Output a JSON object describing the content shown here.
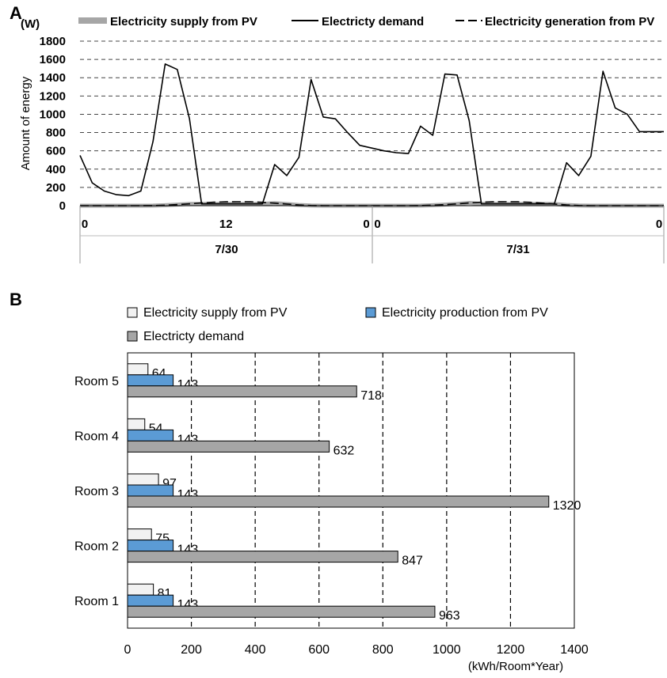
{
  "chart_data": [
    {
      "panel": "A",
      "type": "line",
      "unit": "(W)",
      "ylabel": "Amount of energy",
      "ylim": [
        0,
        1800
      ],
      "yticks": [
        0,
        200,
        400,
        600,
        800,
        1000,
        1200,
        1400,
        1600,
        1800
      ],
      "grid": "dashed horizontal",
      "legend_position": "top",
      "x_ticks": [
        {
          "hour": 0,
          "label": "0"
        },
        {
          "hour": 12,
          "label": "12"
        },
        {
          "hour": 24,
          "label": "0"
        },
        {
          "hour": 24,
          "label": "0"
        },
        {
          "hour": 48,
          "label": "0"
        }
      ],
      "date_labels": [
        {
          "hour": 12,
          "label": "7/30"
        },
        {
          "hour": 36,
          "label": "7/31"
        }
      ],
      "legend": [
        {
          "label": "Electricity supply from PV",
          "style": "thick-gray"
        },
        {
          "label": "Electricty demand",
          "style": "solid"
        },
        {
          "label": "Electricity generation from PV",
          "style": "dashed"
        }
      ],
      "series": [
        {
          "name": "Electricty demand",
          "color": "#000000",
          "x": [
            0,
            1,
            2,
            3,
            4,
            5,
            6,
            7,
            8,
            9,
            10,
            11,
            12,
            13,
            14,
            15,
            16,
            17,
            18,
            19,
            20,
            21,
            22,
            23,
            24,
            25,
            26,
            27,
            28,
            29,
            30,
            31,
            32,
            33,
            34,
            35,
            36,
            37,
            38,
            39,
            40,
            41,
            42,
            43,
            44,
            45,
            46,
            47,
            48
          ],
          "values": [
            550,
            250,
            160,
            120,
            110,
            160,
            700,
            1550,
            1490,
            950,
            20,
            20,
            20,
            20,
            20,
            20,
            450,
            330,
            530,
            1380,
            970,
            950,
            800,
            660,
            630,
            600,
            580,
            570,
            870,
            770,
            1440,
            1430,
            930,
            20,
            20,
            20,
            20,
            20,
            20,
            20,
            470,
            330,
            540,
            1470,
            1070,
            1000,
            810,
            810,
            810
          ]
        },
        {
          "name": "Electricity generation from PV",
          "color": "#000000",
          "x": [
            0,
            1,
            2,
            3,
            4,
            5,
            6,
            7,
            8,
            9,
            10,
            11,
            12,
            13,
            14,
            15,
            16,
            17,
            18,
            19,
            20,
            21,
            22,
            23,
            24,
            25,
            26,
            27,
            28,
            29,
            30,
            31,
            32,
            33,
            34,
            35,
            36,
            37,
            38,
            39,
            40,
            41,
            42,
            43,
            44,
            45,
            46,
            47,
            48
          ],
          "values": [
            0,
            0,
            0,
            0,
            0,
            0,
            1,
            5,
            12,
            20,
            30,
            38,
            42,
            43,
            42,
            37,
            28,
            18,
            8,
            2,
            0,
            0,
            0,
            0,
            0,
            0,
            0,
            0,
            1,
            5,
            12,
            20,
            30,
            38,
            42,
            43,
            42,
            37,
            28,
            18,
            8,
            2,
            0,
            0,
            0,
            0,
            0,
            0,
            0
          ]
        },
        {
          "name": "Electricity supply from PV",
          "color": "#a6a6a6",
          "x": [
            0,
            1,
            2,
            3,
            4,
            5,
            6,
            7,
            8,
            9,
            10,
            11,
            12,
            13,
            14,
            15,
            16,
            17,
            18,
            19,
            20,
            21,
            22,
            23,
            24,
            25,
            26,
            27,
            28,
            29,
            30,
            31,
            32,
            33,
            34,
            35,
            36,
            37,
            38,
            39,
            40,
            41,
            42,
            43,
            44,
            45,
            46,
            47,
            48
          ],
          "values": [
            0,
            0,
            0,
            0,
            0,
            0,
            1,
            5,
            12,
            20,
            20,
            20,
            20,
            20,
            20,
            20,
            28,
            18,
            8,
            2,
            0,
            0,
            0,
            0,
            0,
            0,
            0,
            0,
            1,
            5,
            12,
            20,
            30,
            20,
            20,
            20,
            20,
            20,
            20,
            18,
            8,
            2,
            0,
            0,
            0,
            0,
            0,
            0,
            0
          ]
        }
      ]
    },
    {
      "panel": "B",
      "type": "bar",
      "orientation": "horizontal",
      "categories": [
        "Room 5",
        "Room 4",
        "Room 3",
        "Room 2",
        "Room 1"
      ],
      "xlim": [
        0,
        1400
      ],
      "xticks": [
        0,
        200,
        400,
        600,
        800,
        1000,
        1200,
        1400
      ],
      "xlabel": "(kWh/Room*Year)",
      "grid": "dashed vertical",
      "legend_position": "top",
      "legend": [
        {
          "label": "Electricity supply from PV",
          "color": "#f2f2f2"
        },
        {
          "label": "Electricity production from PV",
          "color": "#5b9bd5"
        },
        {
          "label": "Electricty demand",
          "color": "#a6a6a6"
        }
      ],
      "series": [
        {
          "name": "Electricity supply from PV",
          "color": "#f2f2f2",
          "values": [
            64,
            54,
            97,
            75,
            81
          ]
        },
        {
          "name": "Electricity production from PV",
          "color": "#5b9bd5",
          "values": [
            143,
            143,
            143,
            143,
            143
          ]
        },
        {
          "name": "Electricty demand",
          "color": "#a6a6a6",
          "values": [
            718,
            632,
            1320,
            847,
            963
          ]
        }
      ]
    }
  ]
}
